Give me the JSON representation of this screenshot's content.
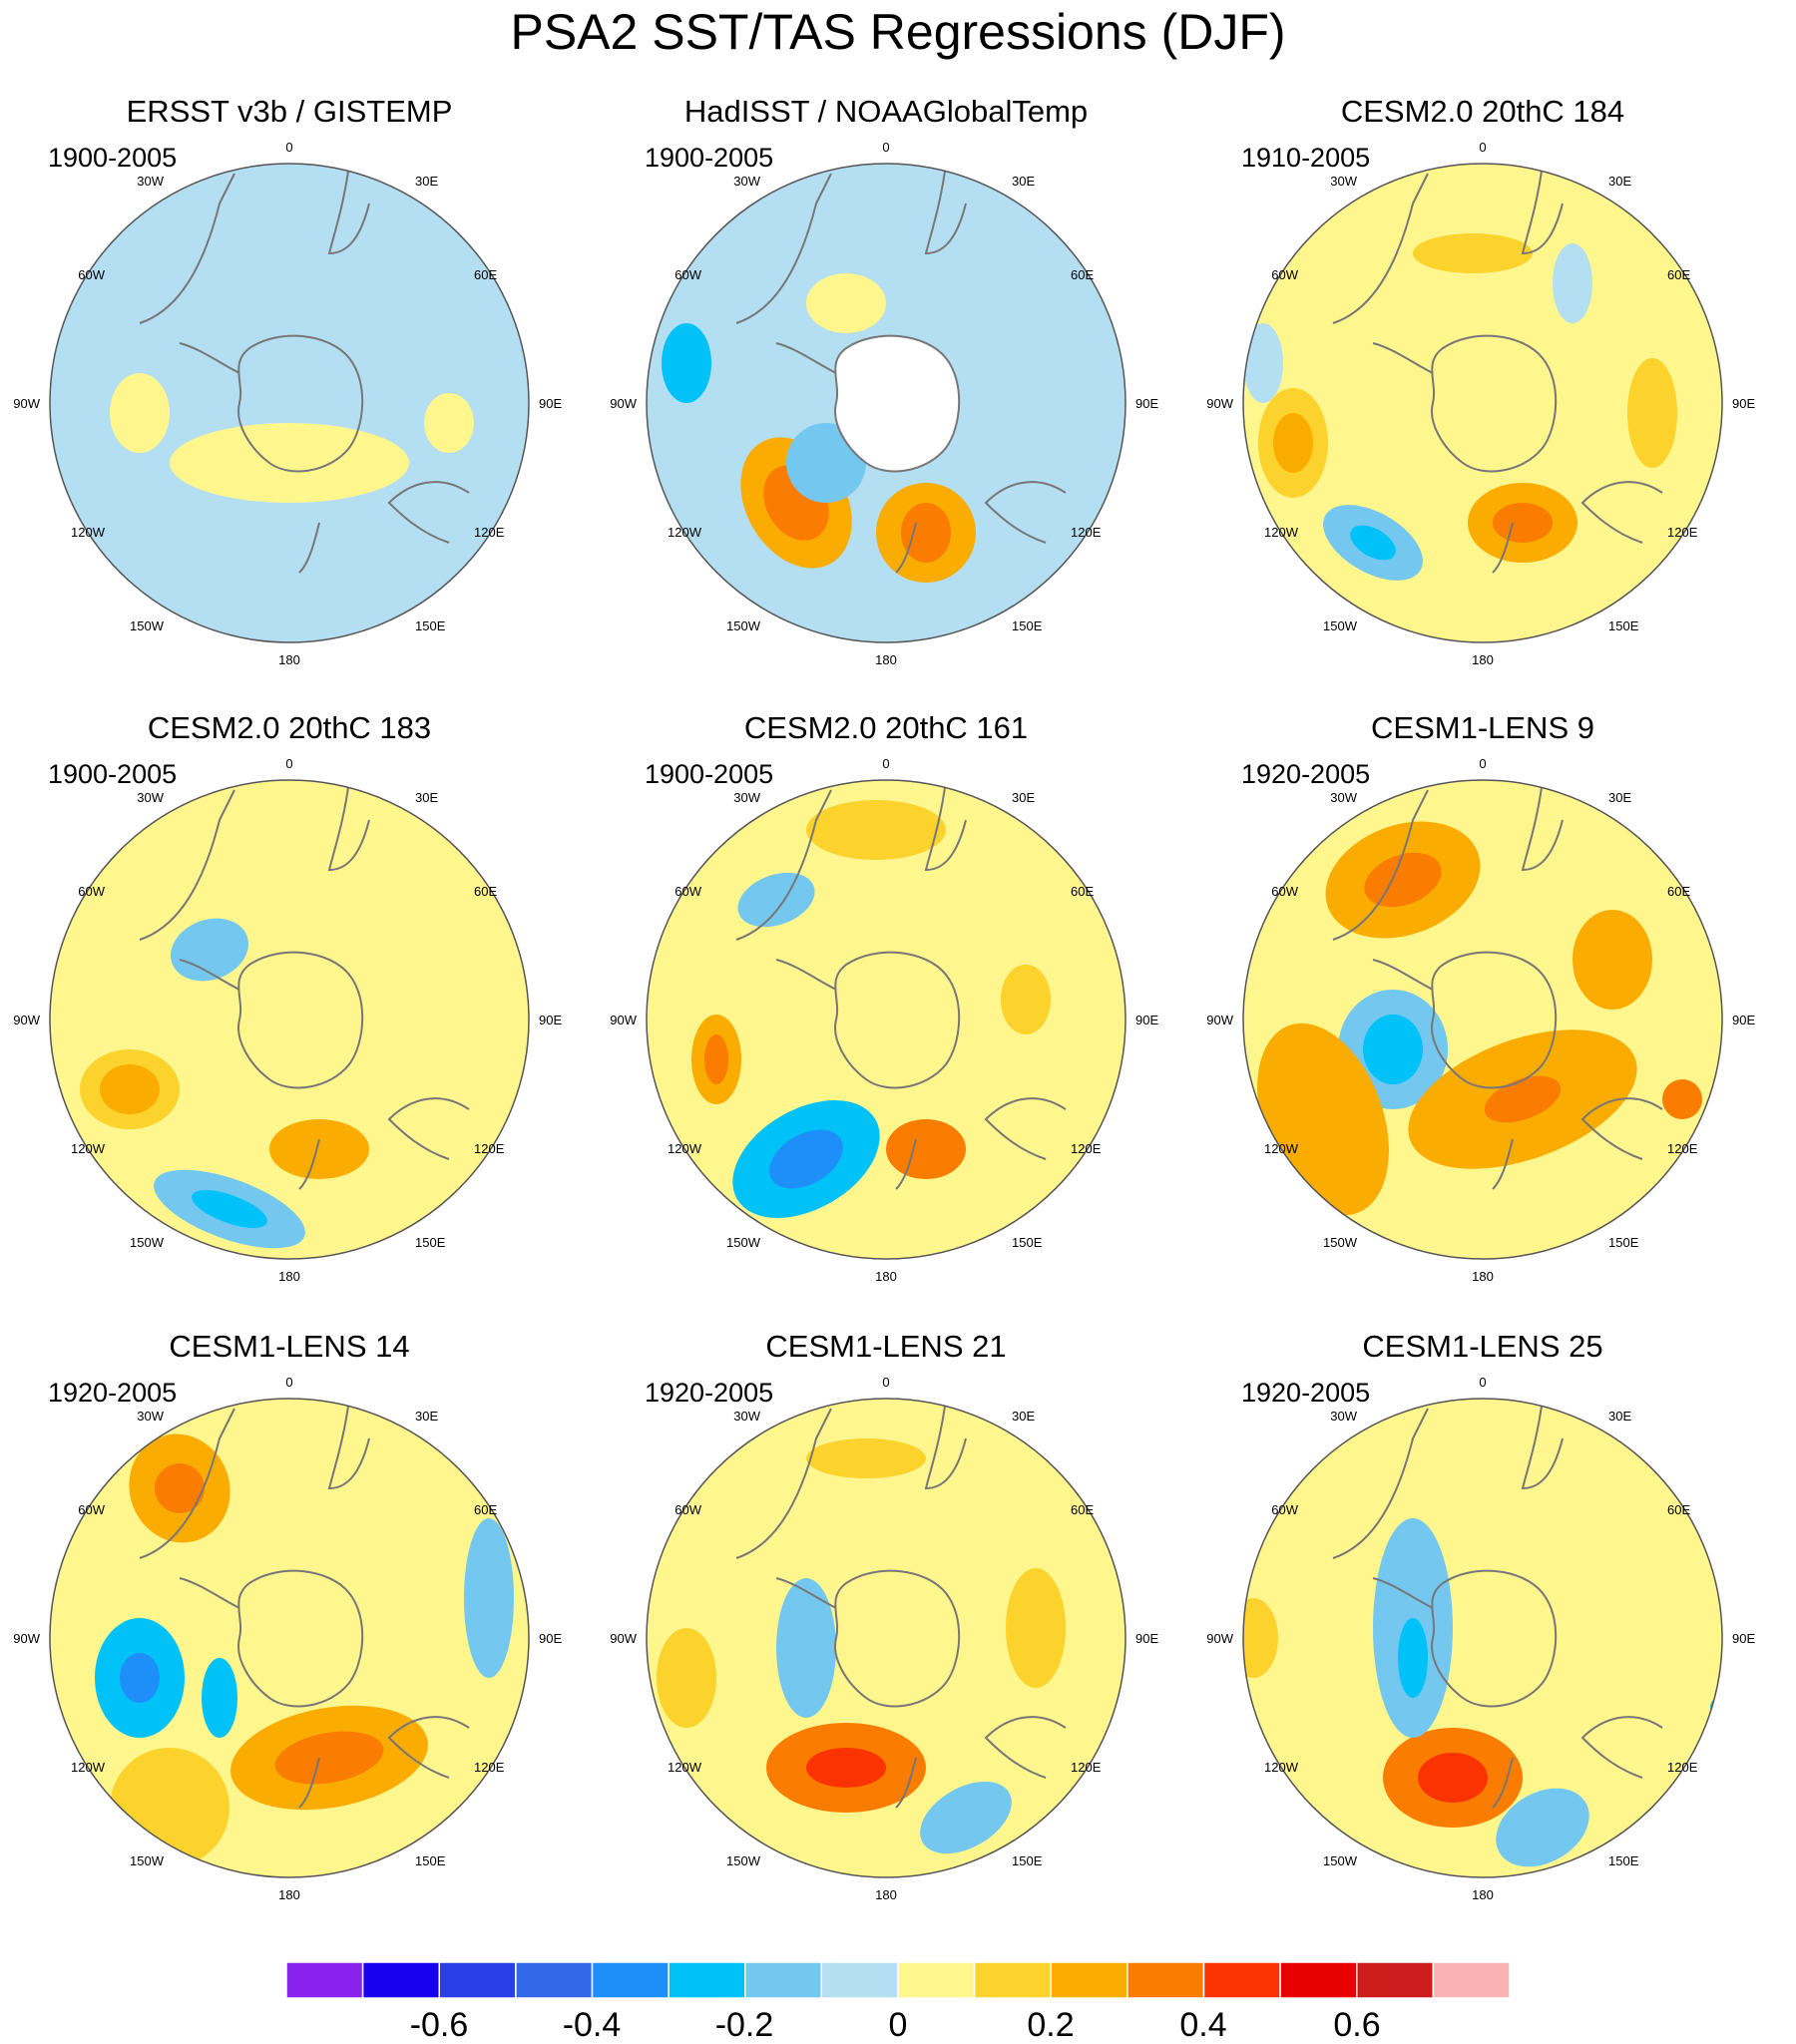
{
  "title": "PSA2 SST/TAS Regressions (DJF)",
  "colors": {
    "land": "#ffffff",
    "coast": "#777777",
    "border": "#555555",
    "bins": [
      "#8a22ee",
      "#1800f0",
      "#2a3ee8",
      "#3068e8",
      "#1e8ef8",
      "#00c2f8",
      "#74c8f0",
      "#b4def2",
      "#fff68e",
      "#fcd22c",
      "#fbac00",
      "#fa7c00",
      "#fa3300",
      "#e80000",
      "#cc1c1c",
      "#fbb2b2"
    ]
  },
  "axis_labels": {
    "deg0": "0",
    "e30": "30E",
    "e60": "60E",
    "e90": "90E",
    "e120": "120E",
    "e150": "150E",
    "deg180": "180",
    "w150": "150W",
    "w120": "120W",
    "w90": "90W",
    "w60": "60W",
    "w30": "30W"
  },
  "panels": [
    {
      "title": "ERSST v3b / GISTEMP",
      "period": "1900-2005",
      "base": 7
    },
    {
      "title": "HadISST / NOAAGlobalTemp",
      "period": "1900-2005",
      "base": 7
    },
    {
      "title": "CESM2.0 20thC 184",
      "period": "1910-2005",
      "base": 8
    },
    {
      "title": "CESM2.0 20thC 183",
      "period": "1900-2005",
      "base": 8
    },
    {
      "title": "CESM2.0 20thC 161",
      "period": "1900-2005",
      "base": 8
    },
    {
      "title": "CESM1-LENS 9",
      "period": "1920-2005",
      "base": 8
    },
    {
      "title": "CESM1-LENS 14",
      "period": "1920-2005",
      "base": 8
    },
    {
      "title": "CESM1-LENS 21",
      "period": "1920-2005",
      "base": 8
    },
    {
      "title": "CESM1-LENS 25",
      "period": "1920-2005",
      "base": 8
    }
  ],
  "colorbar": {
    "labels": [
      "-0.6",
      "-0.4",
      "-0.2",
      "0",
      "0.2",
      "0.4",
      "0.6"
    ]
  }
}
